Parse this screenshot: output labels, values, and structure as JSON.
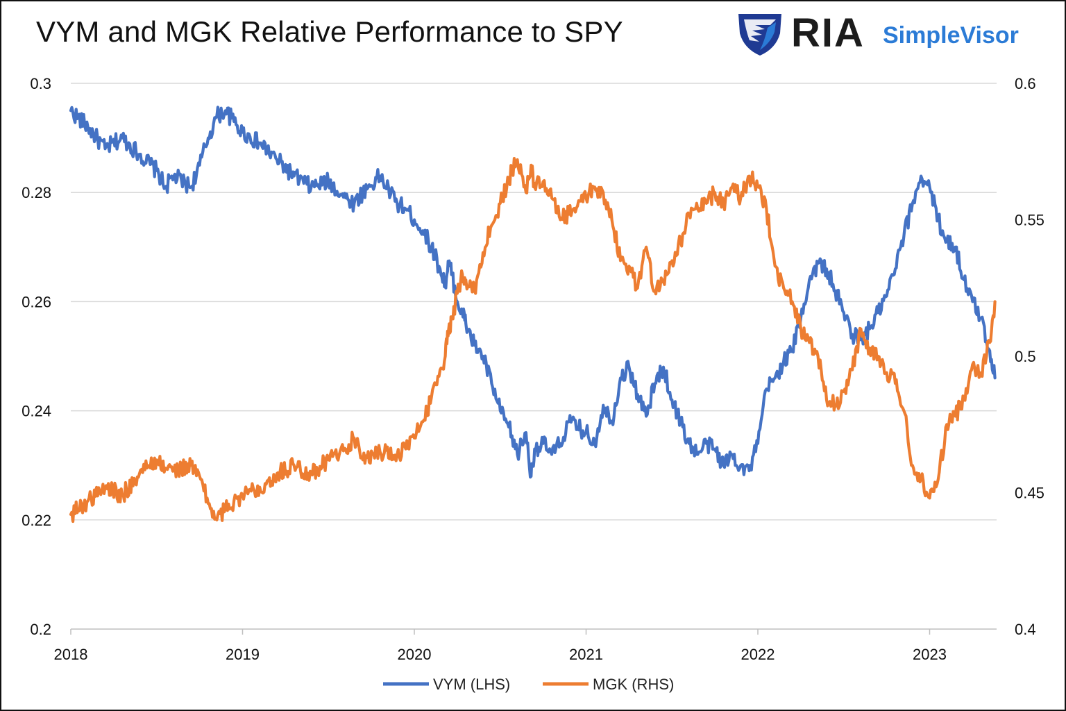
{
  "title": "VYM and MGK Relative Performance to SPY",
  "logo": {
    "brand": "RIA",
    "product": "SimpleVisor",
    "icon": "eagle-shield-icon",
    "brand_color": "#1f3a93",
    "product_color": "#2b7bd6"
  },
  "chart_data": {
    "type": "line",
    "title": "VYM and MGK Relative Performance to SPY",
    "x_start": 2018.0,
    "x_end": 2023.4,
    "x_ticks": [
      "2018",
      "2019",
      "2020",
      "2021",
      "2022",
      "2023"
    ],
    "left_axis": {
      "min": 0.2,
      "max": 0.3,
      "ticks": [
        "0.2",
        "0.22",
        "0.24",
        "0.26",
        "0.28",
        "0.3"
      ]
    },
    "right_axis": {
      "min": 0.4,
      "max": 0.6,
      "ticks": [
        "0.4",
        "0.45",
        "0.5",
        "0.55",
        "0.6"
      ]
    },
    "grid": true,
    "legend_position": "bottom",
    "series": [
      {
        "name": "VYM (LHS)",
        "axis": "left",
        "color": "#4472c4",
        "x": [
          2018.0,
          2018.1,
          2018.2,
          2018.3,
          2018.4,
          2018.5,
          2018.55,
          2018.6,
          2018.7,
          2018.75,
          2018.8,
          2018.85,
          2018.9,
          2018.95,
          2019.0,
          2019.1,
          2019.2,
          2019.3,
          2019.4,
          2019.5,
          2019.6,
          2019.65,
          2019.7,
          2019.8,
          2019.9,
          2019.95,
          2020.0,
          2020.05,
          2020.1,
          2020.15,
          2020.18,
          2020.2,
          2020.22,
          2020.25,
          2020.28,
          2020.3,
          2020.35,
          2020.4,
          2020.45,
          2020.5,
          2020.55,
          2020.6,
          2020.65,
          2020.68,
          2020.7,
          2020.75,
          2020.8,
          2020.85,
          2020.9,
          2020.95,
          2021.0,
          2021.05,
          2021.1,
          2021.15,
          2021.2,
          2021.25,
          2021.3,
          2021.35,
          2021.4,
          2021.45,
          2021.5,
          2021.55,
          2021.6,
          2021.65,
          2021.7,
          2021.75,
          2021.8,
          2021.85,
          2021.9,
          2021.95,
          2022.0,
          2022.05,
          2022.1,
          2022.15,
          2022.2,
          2022.25,
          2022.3,
          2022.35,
          2022.4,
          2022.45,
          2022.5,
          2022.55,
          2022.6,
          2022.65,
          2022.7,
          2022.75,
          2022.8,
          2022.85,
          2022.9,
          2022.95,
          2023.0,
          2023.05,
          2023.1,
          2023.15,
          2023.2,
          2023.25,
          2023.3,
          2023.35,
          2023.38
        ],
        "y": [
          0.295,
          0.292,
          0.288,
          0.29,
          0.287,
          0.284,
          0.281,
          0.283,
          0.281,
          0.285,
          0.29,
          0.294,
          0.295,
          0.293,
          0.291,
          0.289,
          0.286,
          0.283,
          0.281,
          0.282,
          0.279,
          0.278,
          0.28,
          0.283,
          0.278,
          0.277,
          0.275,
          0.273,
          0.27,
          0.266,
          0.263,
          0.267,
          0.265,
          0.26,
          0.258,
          0.256,
          0.252,
          0.25,
          0.245,
          0.24,
          0.237,
          0.232,
          0.236,
          0.228,
          0.233,
          0.234,
          0.232,
          0.234,
          0.238,
          0.237,
          0.236,
          0.234,
          0.241,
          0.238,
          0.246,
          0.248,
          0.243,
          0.239,
          0.245,
          0.248,
          0.242,
          0.238,
          0.234,
          0.232,
          0.234,
          0.233,
          0.23,
          0.232,
          0.23,
          0.229,
          0.234,
          0.244,
          0.246,
          0.249,
          0.251,
          0.257,
          0.264,
          0.267,
          0.266,
          0.262,
          0.258,
          0.254,
          0.253,
          0.255,
          0.258,
          0.261,
          0.266,
          0.272,
          0.278,
          0.283,
          0.281,
          0.275,
          0.271,
          0.27,
          0.264,
          0.26,
          0.257,
          0.251,
          0.246
        ]
      },
      {
        "name": "MGK (RHS)",
        "axis": "right",
        "color": "#ed7d31",
        "x": [
          2018.0,
          2018.1,
          2018.2,
          2018.3,
          2018.4,
          2018.5,
          2018.55,
          2018.6,
          2018.7,
          2018.75,
          2018.8,
          2018.85,
          2018.9,
          2018.95,
          2019.0,
          2019.1,
          2019.2,
          2019.3,
          2019.4,
          2019.5,
          2019.6,
          2019.65,
          2019.7,
          2019.8,
          2019.9,
          2019.95,
          2020.0,
          2020.05,
          2020.1,
          2020.15,
          2020.18,
          2020.2,
          2020.22,
          2020.25,
          2020.28,
          2020.3,
          2020.35,
          2020.4,
          2020.45,
          2020.5,
          2020.55,
          2020.6,
          2020.65,
          2020.68,
          2020.7,
          2020.75,
          2020.8,
          2020.85,
          2020.9,
          2020.95,
          2021.0,
          2021.05,
          2021.1,
          2021.15,
          2021.2,
          2021.25,
          2021.3,
          2021.35,
          2021.4,
          2021.45,
          2021.5,
          2021.55,
          2021.6,
          2021.65,
          2021.7,
          2021.75,
          2021.8,
          2021.85,
          2021.9,
          2021.95,
          2022.0,
          2022.05,
          2022.1,
          2022.15,
          2022.2,
          2022.25,
          2022.3,
          2022.35,
          2022.4,
          2022.45,
          2022.5,
          2022.55,
          2022.6,
          2022.65,
          2022.7,
          2022.75,
          2022.8,
          2022.85,
          2022.9,
          2022.95,
          2023.0,
          2023.05,
          2023.1,
          2023.15,
          2023.2,
          2023.25,
          2023.3,
          2023.35,
          2023.38
        ],
        "y": [
          0.442,
          0.447,
          0.452,
          0.449,
          0.457,
          0.462,
          0.459,
          0.458,
          0.46,
          0.456,
          0.446,
          0.44,
          0.444,
          0.447,
          0.449,
          0.452,
          0.457,
          0.46,
          0.457,
          0.462,
          0.466,
          0.47,
          0.462,
          0.465,
          0.464,
          0.466,
          0.47,
          0.476,
          0.485,
          0.495,
          0.5,
          0.51,
          0.514,
          0.523,
          0.53,
          0.528,
          0.524,
          0.538,
          0.548,
          0.556,
          0.565,
          0.572,
          0.56,
          0.57,
          0.562,
          0.564,
          0.558,
          0.55,
          0.552,
          0.555,
          0.558,
          0.562,
          0.56,
          0.55,
          0.535,
          0.533,
          0.525,
          0.54,
          0.524,
          0.528,
          0.535,
          0.542,
          0.552,
          0.554,
          0.556,
          0.56,
          0.556,
          0.562,
          0.558,
          0.566,
          0.562,
          0.554,
          0.533,
          0.525,
          0.52,
          0.51,
          0.505,
          0.5,
          0.484,
          0.482,
          0.487,
          0.495,
          0.51,
          0.503,
          0.5,
          0.494,
          0.49,
          0.48,
          0.46,
          0.455,
          0.448,
          0.455,
          0.475,
          0.478,
          0.485,
          0.497,
          0.494,
          0.505,
          0.52
        ]
      }
    ]
  }
}
